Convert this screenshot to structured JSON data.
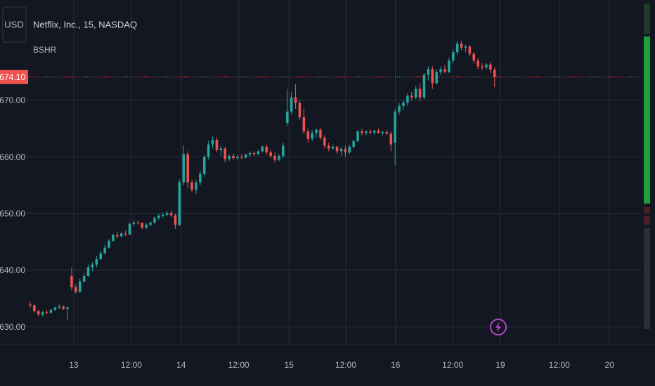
{
  "chart_data": {
    "type": "candlestick",
    "currency": "USD",
    "title": "Netflix, Inc., 15, NASDAQ",
    "indicator": "BSHR",
    "last_price": {
      "value": 674.1,
      "label": "674.10"
    },
    "up_color": "#26a69a",
    "down_color": "#ef5350",
    "grid": true,
    "ylim": [
      627,
      687.7
    ],
    "yticks": [
      {
        "value": 630,
        "label": "630.00"
      },
      {
        "value": 640,
        "label": "640.00"
      },
      {
        "value": 650,
        "label": "650.00"
      },
      {
        "value": 660,
        "label": "660.00"
      },
      {
        "value": 670,
        "label": "670.00"
      }
    ],
    "xlim": [
      -0.5,
      147.8
    ],
    "xticks": [
      {
        "value": 10.5,
        "label": "13"
      },
      {
        "value": 24.4,
        "label": "12:00"
      },
      {
        "value": 36.4,
        "label": "14"
      },
      {
        "value": 50.3,
        "label": "12:00"
      },
      {
        "value": 62.4,
        "label": "15"
      },
      {
        "value": 76.1,
        "label": "12:00"
      },
      {
        "value": 88.1,
        "label": "16"
      },
      {
        "value": 101.9,
        "label": "12:00"
      },
      {
        "value": 113.4,
        "label": "19"
      },
      {
        "value": 127.6,
        "label": "12:00"
      },
      {
        "value": 139.7,
        "label": "20"
      }
    ],
    "candles": [
      [
        634,
        634.4,
        633.4,
        633.8
      ],
      [
        633.8,
        634,
        632.5,
        632.8
      ],
      [
        632.8,
        633,
        631.9,
        632.2
      ],
      [
        632.2,
        632.8,
        631.9,
        632.6
      ],
      [
        632.6,
        633,
        632.2,
        632.5
      ],
      [
        632.5,
        633.2,
        632.3,
        633
      ],
      [
        633,
        633.6,
        632.8,
        633.4
      ],
      [
        633.4,
        634,
        633.2,
        633.6
      ],
      [
        633.6,
        633.8,
        633,
        633.2
      ],
      [
        633.2,
        633.6,
        631.2,
        633.4
      ],
      [
        639,
        640.5,
        636.5,
        637
      ],
      [
        637,
        637.5,
        635.8,
        636.2
      ],
      [
        636.2,
        638.5,
        636,
        638
      ],
      [
        638,
        639.5,
        637.8,
        639
      ],
      [
        639,
        641,
        638.8,
        640.5
      ],
      [
        640.5,
        641.5,
        639.8,
        641
      ],
      [
        641,
        642.5,
        640.5,
        642
      ],
      [
        642,
        643.5,
        641.8,
        643
      ],
      [
        643,
        644.5,
        642.8,
        644
      ],
      [
        644,
        645.5,
        643.8,
        645.2
      ],
      [
        645.2,
        646.5,
        645,
        646.2
      ],
      [
        646.2,
        646.8,
        645.6,
        646
      ],
      [
        646,
        646.8,
        645.8,
        646.5
      ],
      [
        646.5,
        647,
        646,
        646.3
      ],
      [
        646.3,
        648.5,
        646.2,
        648.2
      ],
      [
        648.2,
        648.8,
        647.8,
        648.4
      ],
      [
        648.4,
        648.8,
        648,
        648.3
      ],
      [
        648.3,
        648.5,
        647.2,
        647.5
      ],
      [
        647.5,
        648.3,
        647.3,
        648
      ],
      [
        648,
        648.6,
        647.8,
        648.4
      ],
      [
        648.4,
        649.5,
        648.2,
        649.2
      ],
      [
        649.2,
        650,
        648.8,
        649.6
      ],
      [
        649.6,
        650.2,
        649.2,
        649.8
      ],
      [
        649.8,
        650.4,
        649.5,
        650.1
      ],
      [
        650.1,
        650.5,
        649.4,
        649.7
      ],
      [
        649.7,
        650,
        647.3,
        648
      ],
      [
        648,
        656,
        647.8,
        655.5
      ],
      [
        655.5,
        662,
        655,
        660.5
      ],
      [
        660.5,
        661,
        654.5,
        655.5
      ],
      [
        655.5,
        656,
        653.8,
        654.2
      ],
      [
        654.2,
        656,
        653.5,
        655.5
      ],
      [
        655.5,
        657.5,
        655,
        657
      ],
      [
        657,
        660.5,
        656.5,
        660
      ],
      [
        660,
        662.8,
        659.5,
        662.2
      ],
      [
        662.2,
        663.6,
        661.5,
        663
      ],
      [
        663,
        663.5,
        660.8,
        661.2
      ],
      [
        661.2,
        662,
        660.2,
        661.5
      ],
      [
        661.5,
        661.8,
        659,
        659.6
      ],
      [
        659.6,
        660.5,
        659.3,
        660.2
      ],
      [
        660.2,
        660.6,
        659.5,
        659.8
      ],
      [
        659.8,
        660.4,
        659.4,
        660
      ],
      [
        660,
        660.5,
        659.6,
        659.9
      ],
      [
        659.9,
        660.6,
        659.7,
        660.4
      ],
      [
        660.4,
        661,
        660,
        660.7
      ],
      [
        660.7,
        661,
        660.2,
        660.5
      ],
      [
        660.5,
        661.3,
        660.3,
        661
      ],
      [
        661,
        662,
        660.8,
        661.8
      ],
      [
        661.8,
        662.2,
        660.4,
        660.8
      ],
      [
        660.8,
        661.2,
        659.8,
        660.2
      ],
      [
        660.2,
        660.8,
        659,
        659.5
      ],
      [
        659.5,
        660.5,
        659.2,
        660.2
      ],
      [
        660.2,
        662.5,
        659.8,
        662
      ],
      [
        666,
        672,
        665.5,
        668
      ],
      [
        668,
        671.5,
        667.5,
        670.5
      ],
      [
        670.5,
        672.8,
        668.5,
        669.5
      ],
      [
        669.5,
        670,
        666.5,
        667
      ],
      [
        667,
        668.5,
        664,
        664.5
      ],
      [
        664.5,
        665,
        662.5,
        663.2
      ],
      [
        663.2,
        664.8,
        662.8,
        664.2
      ],
      [
        664.2,
        665,
        663.5,
        664.8
      ],
      [
        664.8,
        665.2,
        663,
        663.4
      ],
      [
        663.4,
        663.8,
        661.5,
        662
      ],
      [
        662,
        662.5,
        661,
        661.5
      ],
      [
        661.5,
        662.2,
        661.2,
        661.8
      ],
      [
        661.8,
        662,
        660.5,
        661
      ],
      [
        661,
        661.8,
        660.2,
        661.4
      ],
      [
        661.4,
        662,
        660,
        660.8
      ],
      [
        660.8,
        662.2,
        660.5,
        661.8
      ],
      [
        661.8,
        663,
        661.5,
        662.8
      ],
      [
        662.8,
        664.8,
        662.5,
        664.5
      ],
      [
        664.5,
        665,
        663.8,
        664.2
      ],
      [
        664.2,
        664.8,
        663.8,
        664.5
      ],
      [
        664.5,
        664.9,
        664,
        664.3
      ],
      [
        664.3,
        664.8,
        663.9,
        664.6
      ],
      [
        664.6,
        665,
        664.1,
        664.2
      ],
      [
        664.2,
        664.6,
        663.8,
        664.4
      ],
      [
        664.4,
        664.8,
        663.9,
        664.1
      ],
      [
        664.1,
        664.5,
        661,
        662.2
      ],
      [
        662.5,
        668.5,
        658.5,
        668
      ],
      [
        668,
        669.5,
        667.5,
        669
      ],
      [
        669,
        670,
        668.2,
        669.6
      ],
      [
        669.6,
        671.2,
        669,
        670.8
      ],
      [
        670.8,
        671.5,
        670,
        670.5
      ],
      [
        670.5,
        672.5,
        670.2,
        672
      ],
      [
        672,
        673,
        669.8,
        670.5
      ],
      [
        670.5,
        674.8,
        670.2,
        674.5
      ],
      [
        674.5,
        676,
        673.5,
        675.5
      ],
      [
        675.5,
        676,
        672,
        673
      ],
      [
        673,
        675.5,
        672.8,
        675
      ],
      [
        675,
        676,
        674.5,
        675.5
      ],
      [
        675.5,
        676.2,
        674.8,
        675
      ],
      [
        675,
        677.5,
        674.8,
        677
      ],
      [
        677,
        679,
        676.5,
        678.5
      ],
      [
        678.5,
        680.5,
        678,
        680
      ],
      [
        680,
        680.5,
        678.8,
        679.3
      ],
      [
        679.3,
        679.8,
        678.5,
        679.5
      ],
      [
        679.5,
        679.8,
        677.8,
        678.2
      ],
      [
        678.2,
        678.5,
        676.5,
        677
      ],
      [
        677,
        677.5,
        675.5,
        676
      ],
      [
        676,
        676.5,
        675.3,
        675.8
      ],
      [
        675.8,
        676.6,
        675.5,
        676.3
      ],
      [
        676.3,
        676.8,
        674.8,
        675.4
      ],
      [
        675.4,
        675.8,
        672.3,
        674.1
      ]
    ]
  }
}
